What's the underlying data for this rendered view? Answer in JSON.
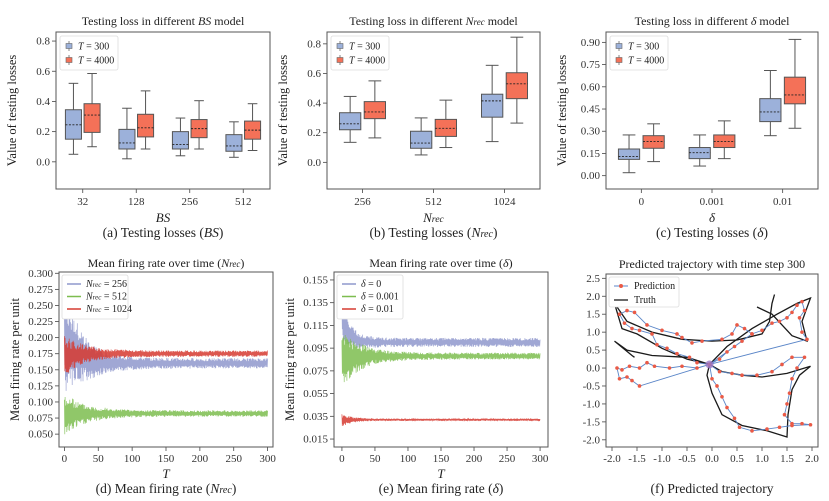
{
  "colors": {
    "box_a": "#9cb1da",
    "box_b": "#f47158",
    "line_blue": "#8f98cc",
    "line_green": "#7dbd4f",
    "line_red": "#d63a30",
    "prediction_line": "#5b86c8",
    "prediction_marker": "#ea5a46",
    "truth": "#1a1a1a",
    "start_marker": "#9a77c6"
  },
  "chart_data": [
    {
      "id": "a",
      "type": "box",
      "title_parts": [
        "Testing loss in different ",
        "BS",
        " model"
      ],
      "caption_parts": [
        "(a) Testing losses (",
        "BS",
        ")"
      ],
      "xlabel": "BS",
      "ylabel": "Value of testing losses",
      "categories": [
        "32",
        "128",
        "256",
        "512"
      ],
      "ylim": [
        -0.18,
        0.86
      ],
      "yticks": [
        0.0,
        0.2,
        0.4,
        0.6,
        0.8
      ],
      "ytick_labels": [
        "0.0",
        "0.2",
        "0.4",
        "0.6",
        "0.8"
      ],
      "legend": [
        "T = 300",
        "T = 4000"
      ],
      "legend_position": "top-left",
      "series": [
        {
          "name": "T = 300",
          "boxes": [
            {
              "min": 0.05,
              "q1": 0.15,
              "median": 0.245,
              "q3": 0.345,
              "max": 0.52
            },
            {
              "min": 0.02,
              "q1": 0.085,
              "median": 0.125,
              "q3": 0.215,
              "max": 0.355
            },
            {
              "min": 0.04,
              "q1": 0.085,
              "median": 0.115,
              "q3": 0.2,
              "max": 0.29
            },
            {
              "min": 0.03,
              "q1": 0.07,
              "median": 0.105,
              "q3": 0.18,
              "max": 0.265
            }
          ]
        },
        {
          "name": "T = 4000",
          "boxes": [
            {
              "min": 0.1,
              "q1": 0.195,
              "median": 0.31,
              "q3": 0.385,
              "max": 0.585
            },
            {
              "min": 0.085,
              "q1": 0.165,
              "median": 0.225,
              "q3": 0.315,
              "max": 0.47
            },
            {
              "min": 0.085,
              "q1": 0.16,
              "median": 0.22,
              "q3": 0.28,
              "max": 0.405
            },
            {
              "min": 0.075,
              "q1": 0.15,
              "median": 0.21,
              "q3": 0.27,
              "max": 0.385
            }
          ]
        }
      ]
    },
    {
      "id": "b",
      "type": "box",
      "title_parts": [
        "Testing loss in different ",
        "Nrec",
        " model"
      ],
      "caption_parts": [
        "(b) Testing losses (",
        "Nrec",
        ")"
      ],
      "xlabel": "Nrec",
      "ylabel": "Value of testing losses",
      "categories": [
        "256",
        "512",
        "1024"
      ],
      "ylim": [
        -0.18,
        0.88
      ],
      "yticks": [
        0.0,
        0.2,
        0.4,
        0.6,
        0.8
      ],
      "ytick_labels": [
        "0.0",
        "0.2",
        "0.4",
        "0.6",
        "0.8"
      ],
      "legend": [
        "T = 300",
        "T = 4000"
      ],
      "legend_position": "top-left",
      "series": [
        {
          "name": "T = 300",
          "boxes": [
            {
              "min": 0.135,
              "q1": 0.22,
              "median": 0.26,
              "q3": 0.335,
              "max": 0.445
            },
            {
              "min": 0.05,
              "q1": 0.095,
              "median": 0.13,
              "q3": 0.21,
              "max": 0.3
            },
            {
              "min": 0.14,
              "q1": 0.305,
              "median": 0.415,
              "q3": 0.46,
              "max": 0.655
            }
          ]
        },
        {
          "name": "T = 4000",
          "boxes": [
            {
              "min": 0.165,
              "q1": 0.295,
              "median": 0.34,
              "q3": 0.41,
              "max": 0.55
            },
            {
              "min": 0.1,
              "q1": 0.175,
              "median": 0.23,
              "q3": 0.29,
              "max": 0.42
            },
            {
              "min": 0.265,
              "q1": 0.43,
              "median": 0.53,
              "q3": 0.605,
              "max": 0.845
            }
          ]
        }
      ]
    },
    {
      "id": "c",
      "type": "box",
      "title_parts": [
        "Testing loss in different ",
        "δ",
        " model"
      ],
      "caption_parts": [
        "(c) Testing losses (",
        "δ",
        ")"
      ],
      "xlabel": "δ",
      "ylabel": "Value of testing losses",
      "categories": [
        "0",
        "0.001",
        "0.01"
      ],
      "ylim": [
        -0.09,
        0.97
      ],
      "yticks": [
        0.0,
        0.15,
        0.3,
        0.45,
        0.6,
        0.75,
        0.9
      ],
      "ytick_labels": [
        "0.00",
        "0.15",
        "0.30",
        "0.45",
        "0.60",
        "0.75",
        "0.90"
      ],
      "legend": [
        "T = 300",
        "T = 4000"
      ],
      "legend_position": "top-left",
      "series": [
        {
          "name": "T = 300",
          "boxes": [
            {
              "min": 0.02,
              "q1": 0.11,
              "median": 0.13,
              "q3": 0.18,
              "max": 0.275
            },
            {
              "min": 0.065,
              "q1": 0.115,
              "median": 0.155,
              "q3": 0.19,
              "max": 0.275
            },
            {
              "min": 0.27,
              "q1": 0.365,
              "median": 0.43,
              "q3": 0.52,
              "max": 0.71
            }
          ]
        },
        {
          "name": "T = 4000",
          "boxes": [
            {
              "min": 0.095,
              "q1": 0.185,
              "median": 0.23,
              "q3": 0.27,
              "max": 0.35
            },
            {
              "min": 0.115,
              "q1": 0.19,
              "median": 0.23,
              "q3": 0.275,
              "max": 0.37
            },
            {
              "min": 0.32,
              "q1": 0.485,
              "median": 0.545,
              "q3": 0.665,
              "max": 0.92
            }
          ]
        }
      ]
    },
    {
      "id": "d",
      "type": "line",
      "title_parts": [
        "Mean firing rate over time (",
        "Nrec",
        ")"
      ],
      "caption_parts": [
        "(d) Mean firing rate (",
        "Nrec",
        ")"
      ],
      "xlabel": "T",
      "ylabel": "Mean firing rate per unit",
      "xlim": [
        -8,
        308
      ],
      "ylim": [
        0.03,
        0.302
      ],
      "xticks": [
        0,
        50,
        100,
        150,
        200,
        250,
        300
      ],
      "yticks": [
        0.05,
        0.075,
        0.1,
        0.125,
        0.15,
        0.175,
        0.2,
        0.225,
        0.25,
        0.275,
        0.3
      ],
      "ytick_labels": [
        "0.050",
        "0.075",
        "0.100",
        "0.125",
        "0.150",
        "0.175",
        "0.200",
        "0.225",
        "0.250",
        "0.275",
        "0.300"
      ],
      "legend_position": "top-left",
      "series": [
        {
          "name": "Nrec = 256",
          "color_key": "line_blue",
          "steady": 0.16,
          "start": 0.2,
          "osc_start": 0.085,
          "osc_steady": 0.008,
          "decay": 30
        },
        {
          "name": "Nrec = 512",
          "color_key": "line_green",
          "steady": 0.082,
          "start": 0.08,
          "osc_start": 0.035,
          "osc_steady": 0.005,
          "decay": 30
        },
        {
          "name": "Nrec = 1024",
          "color_key": "line_red",
          "steady": 0.175,
          "start": 0.17,
          "osc_start": 0.033,
          "osc_steady": 0.005,
          "decay": 30
        }
      ]
    },
    {
      "id": "e",
      "type": "line",
      "title_parts": [
        "Mean firing rate over time (",
        "δ",
        ")"
      ],
      "caption_parts": [
        "(e) Mean firing rate (",
        "δ",
        ")"
      ],
      "xlabel": "T",
      "ylabel": "Mean firing rate per unit",
      "xlim": [
        -12,
        312
      ],
      "ylim": [
        0.008,
        0.162
      ],
      "xticks": [
        0,
        50,
        100,
        150,
        200,
        250,
        300
      ],
      "yticks": [
        0.015,
        0.035,
        0.055,
        0.075,
        0.095,
        0.115,
        0.135,
        0.155
      ],
      "ytick_labels": [
        "0.015",
        "0.035",
        "0.055",
        "0.075",
        "0.095",
        "0.115",
        "0.135",
        "0.155"
      ],
      "legend_position": "top-left",
      "series": [
        {
          "name": "δ = 0",
          "color_key": "line_blue",
          "steady": 0.1,
          "start": 0.12,
          "osc_start": 0.018,
          "osc_steady": 0.004,
          "decay": 18
        },
        {
          "name": "δ = 0.001",
          "color_key": "line_green",
          "steady": 0.088,
          "start": 0.085,
          "osc_start": 0.026,
          "osc_steady": 0.003,
          "decay": 30
        },
        {
          "name": "δ = 0.01",
          "color_key": "line_red",
          "steady": 0.032,
          "start": 0.031,
          "osc_start": 0.006,
          "osc_steady": 0.001,
          "decay": 15
        }
      ]
    },
    {
      "id": "f",
      "type": "scatter",
      "title_parts": [
        "Predicted trajectory with time step 300",
        "",
        ""
      ],
      "caption_parts": [
        "(f) Predicted trajectory",
        "",
        ""
      ],
      "xlabel": "",
      "ylabel": "",
      "xlim": [
        -2.12,
        2.12
      ],
      "ylim": [
        -2.2,
        2.62
      ],
      "xticks": [
        -2.0,
        -1.5,
        -1.0,
        -0.5,
        0.0,
        0.5,
        1.0,
        1.5,
        2.0
      ],
      "xtick_labels": [
        "-2.0",
        "-1.5",
        "-1.0",
        "-0.5",
        "0.0",
        "0.5",
        "1.0",
        "1.5",
        "2.0"
      ],
      "yticks": [
        -2.0,
        -1.5,
        -1.0,
        -0.5,
        0.0,
        0.5,
        1.0,
        1.5,
        2.0,
        2.5
      ],
      "ytick_labels": [
        "-2.0",
        "-1.5",
        "-1.0",
        "-0.5",
        "0.0",
        "0.5",
        "1.0",
        "1.5",
        "2.0",
        "2.5"
      ],
      "legend": [
        "Prediction",
        "Truth"
      ],
      "legend_position": "top-left",
      "truth_paths": [
        [
          [
            -0.05,
            0.1
          ],
          [
            -0.5,
            0.25
          ],
          [
            -1.0,
            0.55
          ],
          [
            -1.5,
            0.95
          ],
          [
            -1.8,
            1.1
          ],
          [
            -1.95,
            1.8
          ],
          [
            -1.7,
            1.3
          ],
          [
            -1.2,
            1.0
          ],
          [
            -0.6,
            0.8
          ],
          [
            0.0,
            0.75
          ],
          [
            0.5,
            0.78
          ],
          [
            1.0,
            0.95
          ],
          [
            1.15,
            1.3
          ],
          [
            1.2,
            1.8
          ],
          [
            1.25,
            2.05
          ]
        ],
        [
          [
            -0.05,
            0.1
          ],
          [
            -0.5,
            0.3
          ],
          [
            -1.2,
            0.35
          ],
          [
            -1.7,
            0.5
          ],
          [
            -1.95,
            0.75
          ],
          [
            -1.6,
            0.35
          ],
          [
            -1.55,
            0.3
          ]
        ],
        [
          [
            -0.05,
            0.1
          ],
          [
            0.3,
            0.6
          ],
          [
            0.8,
            1.1
          ],
          [
            1.3,
            1.5
          ],
          [
            1.7,
            1.8
          ],
          [
            1.97,
            1.95
          ],
          [
            1.8,
            1.3
          ],
          [
            1.9,
            0.75
          ],
          [
            1.6,
            0.9
          ],
          [
            1.2,
            1.5
          ],
          [
            0.9,
            1.7
          ]
        ],
        [
          [
            -0.05,
            0.1
          ],
          [
            -0.1,
            -0.2
          ],
          [
            0.0,
            -0.7
          ],
          [
            0.2,
            -1.3
          ],
          [
            0.6,
            -1.6
          ],
          [
            1.1,
            -1.75
          ],
          [
            1.5,
            -1.92
          ],
          [
            1.52,
            -1.3
          ],
          [
            1.6,
            -0.6
          ],
          [
            1.75,
            -0.2
          ],
          [
            1.97,
            0.05
          ],
          [
            1.5,
            -0.15
          ],
          [
            1.0,
            -0.25
          ],
          [
            0.6,
            -0.2
          ],
          [
            0.2,
            -0.1
          ],
          [
            -0.05,
            0.1
          ]
        ]
      ],
      "prediction_path": [
        [
          -0.05,
          0.1
        ],
        [
          -0.3,
          0.0
        ],
        [
          -0.6,
          0.05
        ],
        [
          -0.85,
          0.0
        ],
        [
          -1.15,
          0.05
        ],
        [
          -1.3,
          0.15
        ],
        [
          -1.45,
          0.0
        ],
        [
          -1.65,
          0.05
        ],
        [
          -1.8,
          -0.05
        ],
        [
          -1.9,
          0.0
        ],
        [
          -1.85,
          -0.3
        ],
        [
          -1.7,
          -0.25
        ],
        [
          -1.6,
          -0.35
        ],
        [
          -1.45,
          -0.5
        ],
        [
          -0.05,
          0.1
        ],
        [
          -0.3,
          0.15
        ],
        [
          -0.45,
          0.3
        ],
        [
          -0.7,
          0.4
        ],
        [
          -0.9,
          0.55
        ],
        [
          -1.1,
          0.65
        ],
        [
          -1.2,
          0.95
        ],
        [
          -1.45,
          1.05
        ],
        [
          -1.6,
          1.1
        ],
        [
          -1.75,
          1.25
        ],
        [
          -1.85,
          1.5
        ],
        [
          -1.7,
          1.6
        ],
        [
          -1.55,
          1.55
        ],
        [
          -1.3,
          1.2
        ],
        [
          -1.0,
          1.05
        ],
        [
          -0.7,
          0.95
        ],
        [
          -0.6,
          0.85
        ],
        [
          -0.4,
          0.7
        ],
        [
          -0.2,
          0.75
        ],
        [
          0.2,
          0.8
        ],
        [
          0.4,
          0.95
        ],
        [
          0.5,
          1.2
        ],
        [
          0.65,
          1.1
        ],
        [
          0.8,
          0.95
        ],
        [
          1.0,
          1.05
        ],
        [
          1.2,
          1.25
        ],
        [
          1.35,
          1.3
        ],
        [
          1.5,
          1.4
        ],
        [
          1.6,
          1.55
        ],
        [
          1.7,
          1.75
        ],
        [
          1.8,
          1.85
        ],
        [
          1.85,
          1.6
        ],
        [
          1.75,
          1.4
        ],
        [
          1.8,
          1.0
        ],
        [
          1.9,
          0.8
        ],
        [
          -0.05,
          0.1
        ],
        [
          0.15,
          0.25
        ],
        [
          0.3,
          0.45
        ],
        [
          0.45,
          0.6
        ],
        [
          0.6,
          0.75
        ],
        [
          0.8,
          0.95
        ],
        [
          -0.05,
          0.1
        ],
        [
          0.15,
          -0.1
        ],
        [
          0.4,
          -0.15
        ],
        [
          0.6,
          -0.2
        ],
        [
          0.9,
          -0.2
        ],
        [
          1.2,
          -0.1
        ],
        [
          1.4,
          0.1
        ],
        [
          1.6,
          0.3
        ],
        [
          1.85,
          0.3
        ],
        [
          1.7,
          0.0
        ],
        [
          1.6,
          -0.3
        ],
        [
          1.55,
          -0.7
        ],
        [
          1.5,
          -1.0
        ],
        [
          1.45,
          -1.3
        ],
        [
          1.6,
          -1.55
        ],
        [
          1.8,
          -1.55
        ],
        [
          1.97,
          -1.58
        ],
        [
          1.6,
          -1.6
        ],
        [
          1.35,
          -1.65
        ],
        [
          1.1,
          -1.7
        ],
        [
          0.8,
          -1.75
        ],
        [
          0.55,
          -1.65
        ],
        [
          0.45,
          -1.4
        ],
        [
          0.3,
          -1.1
        ],
        [
          0.2,
          -0.8
        ],
        [
          0.1,
          -0.5
        ],
        [
          0.0,
          -0.3
        ],
        [
          -0.05,
          0.1
        ]
      ],
      "start_point": [
        -0.05,
        0.1
      ]
    }
  ]
}
